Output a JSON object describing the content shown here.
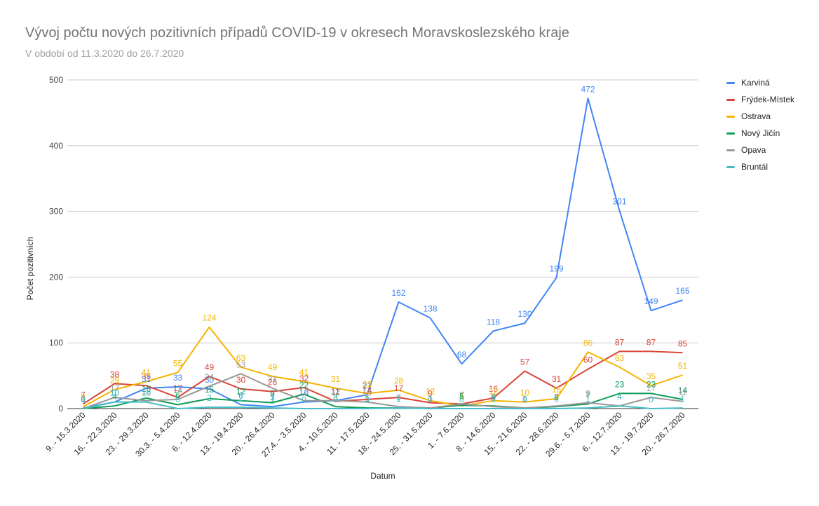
{
  "chart_data": {
    "type": "line",
    "title": "Vývoj počtu nových pozitivních případů COVID-19 v okresech Moravskoslezského kraje",
    "subtitle": "V období od 11.3.2020 do 26.7.2020",
    "xlabel": "Datum",
    "ylabel": "Počet pozitivních",
    "ylim": [
      0,
      500
    ],
    "yticks": [
      "0",
      "100",
      "200",
      "300",
      "400",
      "500"
    ],
    "grid": true,
    "legend_position": "right",
    "categories": [
      "9. - 15.3.2020",
      "16. - 22.3.2020",
      "23. - 29.3.2020",
      "30.3. - 5.4.2020",
      "6. - 12.4.2020",
      "13. - 19.4.2020",
      "20. - 26.4.2020",
      "27.4. - 3.5.2020",
      "4. - 10.5.2020",
      "11. - 17.5.2020",
      "18. - 24.5.2020",
      "25. - 31.5.2020",
      "1. - 7.6.2020",
      "8. - 14.6.2020",
      "15. - 21.6.2020",
      "22. - 28.6.2020",
      "29.6. - 5.7.2020",
      "6. - 12.7.2020",
      "13. - 19.7.2020",
      "20. - 26.7.2020"
    ],
    "series": [
      {
        "name": "Karviná",
        "color": "#4285f4",
        "values": [
          1,
          10,
          31,
          33,
          30,
          6,
          3,
          10,
          12,
          21,
          162,
          138,
          68,
          118,
          130,
          199,
          472,
          301,
          149,
          165
        ]
      },
      {
        "name": "Frýdek-Místek",
        "color": "#db4437",
        "values": [
          7,
          38,
          35,
          17,
          49,
          30,
          26,
          32,
          11,
          14,
          17,
          9,
          7,
          16,
          57,
          31,
          60,
          87,
          87,
          85
        ]
      },
      {
        "name": "Ostrava",
        "color": "#f4b400",
        "values": [
          3,
          29,
          41,
          55,
          124,
          63,
          49,
          41,
          31,
          23,
          28,
          12,
          4,
          12,
          10,
          15,
          86,
          63,
          35,
          51
        ]
      },
      {
        "name": "Nový Jičín",
        "color": "#0f9d58",
        "values": [
          0,
          4,
          16,
          6,
          15,
          12,
          9,
          22,
          3,
          1,
          1,
          1,
          5,
          4,
          1,
          3,
          7,
          23,
          23,
          14
        ]
      },
      {
        "name": "Opava",
        "color": "#999999",
        "values": [
          0,
          17,
          12,
          14,
          34,
          53,
          31,
          12,
          12,
          10,
          3,
          1,
          7,
          3,
          1,
          4,
          9,
          4,
          17,
          11
        ]
      },
      {
        "name": "Bruntál",
        "color": "#46bdc6",
        "values": [
          0,
          10,
          10,
          0,
          2,
          2,
          1,
          0,
          0,
          0,
          1,
          0,
          0,
          0,
          0,
          0,
          1,
          4,
          0,
          1
        ]
      }
    ]
  }
}
